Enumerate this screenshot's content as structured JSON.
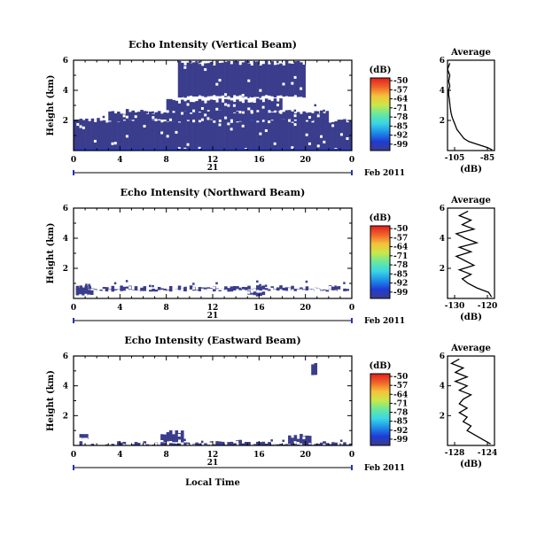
{
  "date_label": "Feb 2011",
  "xaxis_label": "Local Time",
  "colorbar": {
    "unit": "(dB)",
    "ticks": [
      "-50",
      "-57",
      "-64",
      "-71",
      "-78",
      "-85",
      "-92",
      "-99"
    ],
    "colors": [
      "#3a3d8c",
      "#1f3bd6",
      "#1e8fe8",
      "#3ad6e6",
      "#66e8a0",
      "#c8e84a",
      "#f5c23a",
      "#f0642a",
      "#e01e1e"
    ]
  },
  "chart_data": [
    {
      "type": "heatmap",
      "title": "Echo Intensity (Vertical Beam)",
      "ylabel": "Height (km)",
      "x_ticks": [
        "0",
        "4",
        "8",
        "12",
        "16",
        "20",
        "0"
      ],
      "day_label": "21",
      "y_ticks": [
        "6",
        "4",
        "2"
      ],
      "xlim": [
        0,
        24
      ],
      "ylim": [
        0,
        6
      ],
      "fill_color": "#3a3d8c",
      "cloud_layers": [
        {
          "x0": 0,
          "x1": 24,
          "y0": 0,
          "y1": 2.0
        },
        {
          "x0": 3,
          "x1": 22,
          "y0": 2.0,
          "y1": 2.6
        },
        {
          "x0": 8,
          "x1": 18,
          "y0": 2.6,
          "y1": 3.3
        },
        {
          "x0": 9,
          "x1": 20,
          "y0": 3.6,
          "y1": 5.8
        }
      ],
      "strong_echo_near_ground": true,
      "average_profile": {
        "title": "Average",
        "xlabel": "(dB)",
        "x_ticks": [
          "-105",
          "-85"
        ],
        "xlim": [
          -105,
          -85
        ],
        "y_ticks": [
          "6",
          "4",
          "2"
        ],
        "height_km": [
          0.05,
          0.2,
          0.4,
          0.6,
          0.8,
          1.0,
          1.2,
          1.4,
          1.6,
          1.8,
          2.0,
          2.2,
          2.5,
          2.8,
          3.1,
          3.4,
          3.7,
          4.0,
          4.3,
          4.6,
          5.0,
          5.4,
          5.8
        ],
        "values_db": [
          -86,
          -88,
          -92,
          -96,
          -98,
          -99,
          -100,
          -101,
          -101.5,
          -102,
          -102.5,
          -103,
          -103.5,
          -103.8,
          -104,
          -104.2,
          -104.5,
          -104.5,
          -104,
          -104.5,
          -104,
          -105,
          -104
        ]
      }
    },
    {
      "type": "heatmap",
      "title": "Echo Intensity (Northward Beam)",
      "ylabel": "Height (km)",
      "x_ticks": [
        "0",
        "4",
        "8",
        "12",
        "16",
        "20",
        "0"
      ],
      "day_label": "21",
      "y_ticks": [
        "6",
        "4",
        "2"
      ],
      "xlim": [
        0,
        24
      ],
      "ylim": [
        0,
        6
      ],
      "fill_color": "#3a3d8c",
      "cloud_layers": [
        {
          "x0": 0,
          "x1": 24,
          "y0": 0.55,
          "y1": 0.7
        },
        {
          "x0": 0.2,
          "x1": 1.5,
          "y0": 0.3,
          "y1": 0.7
        },
        {
          "x0": 15,
          "x1": 16.5,
          "y0": 0.2,
          "y1": 0.4
        }
      ],
      "strong_echo_near_ground": false,
      "average_profile": {
        "title": "Average",
        "xlabel": "(dB)",
        "x_ticks": [
          "-130",
          "-120"
        ],
        "xlim": [
          -134,
          -118
        ],
        "y_ticks": [
          "6",
          "4",
          "2"
        ],
        "height_km": [
          0.1,
          0.4,
          0.7,
          1.0,
          1.3,
          1.6,
          1.9,
          2.2,
          2.5,
          2.8,
          3.1,
          3.4,
          3.7,
          4.0,
          4.3,
          4.6,
          4.9,
          5.2,
          5.5,
          5.8
        ],
        "values_db": [
          -119,
          -120,
          -124,
          -127,
          -129,
          -126,
          -130,
          -125,
          -128,
          -131,
          -126,
          -130,
          -124,
          -128,
          -131,
          -125,
          -129,
          -126,
          -130,
          -127
        ]
      }
    },
    {
      "type": "heatmap",
      "title": "Echo Intensity (Eastward Beam)",
      "ylabel": "Height (km)",
      "x_ticks": [
        "0",
        "4",
        "8",
        "12",
        "16",
        "20",
        "0"
      ],
      "day_label": "21",
      "y_ticks": [
        "6",
        "4",
        "2"
      ],
      "xlim": [
        0,
        24
      ],
      "ylim": [
        0,
        6
      ],
      "fill_color": "#3a3d8c",
      "cloud_layers": [
        {
          "x0": 0,
          "x1": 24,
          "y0": 0.0,
          "y1": 0.12
        },
        {
          "x0": 0.5,
          "x1": 1.2,
          "y0": 0.5,
          "y1": 0.9
        },
        {
          "x0": 7.5,
          "x1": 9.5,
          "y0": 0.3,
          "y1": 0.9
        },
        {
          "x0": 14,
          "x1": 14.4,
          "y0": 0.1,
          "y1": 0.25
        },
        {
          "x0": 18.5,
          "x1": 20.5,
          "y0": 0.1,
          "y1": 0.6
        },
        {
          "x0": 20.5,
          "x1": 20.8,
          "y0": 4.8,
          "y1": 5.4
        }
      ],
      "strong_echo_near_ground": false,
      "average_profile": {
        "title": "Average",
        "xlabel": "(dB)",
        "x_ticks": [
          "-128",
          "-124"
        ],
        "xlim": [
          -129,
          -123
        ],
        "y_ticks": [
          "6",
          "4",
          "2"
        ],
        "height_km": [
          0.1,
          0.4,
          0.7,
          1.0,
          1.3,
          1.6,
          1.9,
          2.2,
          2.5,
          2.8,
          3.1,
          3.4,
          3.7,
          4.0,
          4.3,
          4.6,
          4.9,
          5.2,
          5.5,
          5.8
        ],
        "values_db": [
          -123.5,
          -124.5,
          -125.5,
          -126.5,
          -126,
          -127,
          -126.5,
          -127.5,
          -126.5,
          -127.5,
          -127,
          -126,
          -127.5,
          -126.5,
          -128,
          -126.5,
          -128,
          -127,
          -128.5,
          -127.5
        ]
      }
    }
  ]
}
